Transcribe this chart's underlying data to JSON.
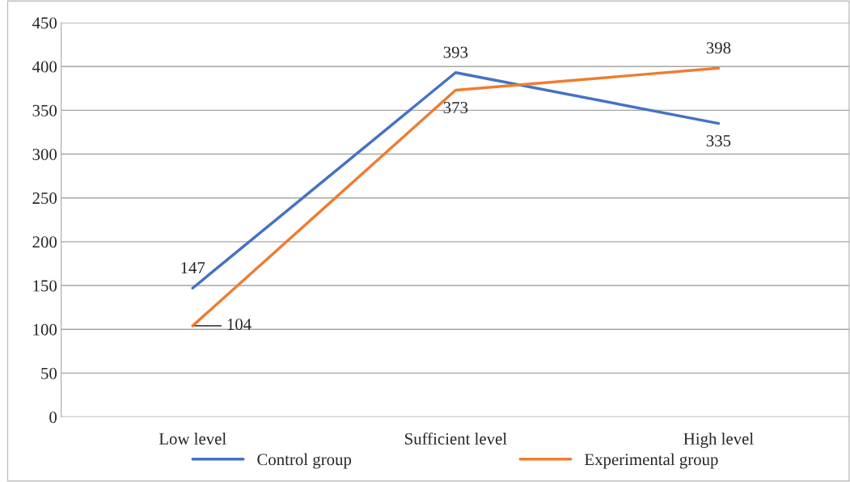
{
  "chart_data": {
    "type": "line",
    "categories": [
      "Low level",
      "Sufficient level",
      "High level"
    ],
    "series": [
      {
        "name": "Control group",
        "color": "#4472c4",
        "values": [
          147,
          393,
          335
        ]
      },
      {
        "name": "Experimental group",
        "color": "#ed7d31",
        "values": [
          104,
          373,
          398
        ]
      }
    ],
    "ylim": [
      0,
      450
    ],
    "yticks": [
      0,
      50,
      100,
      150,
      200,
      250,
      300,
      350,
      400,
      450
    ],
    "grid": "y",
    "legend": "bottom",
    "data_labels": true,
    "marker": "none",
    "line_style": "solid"
  }
}
